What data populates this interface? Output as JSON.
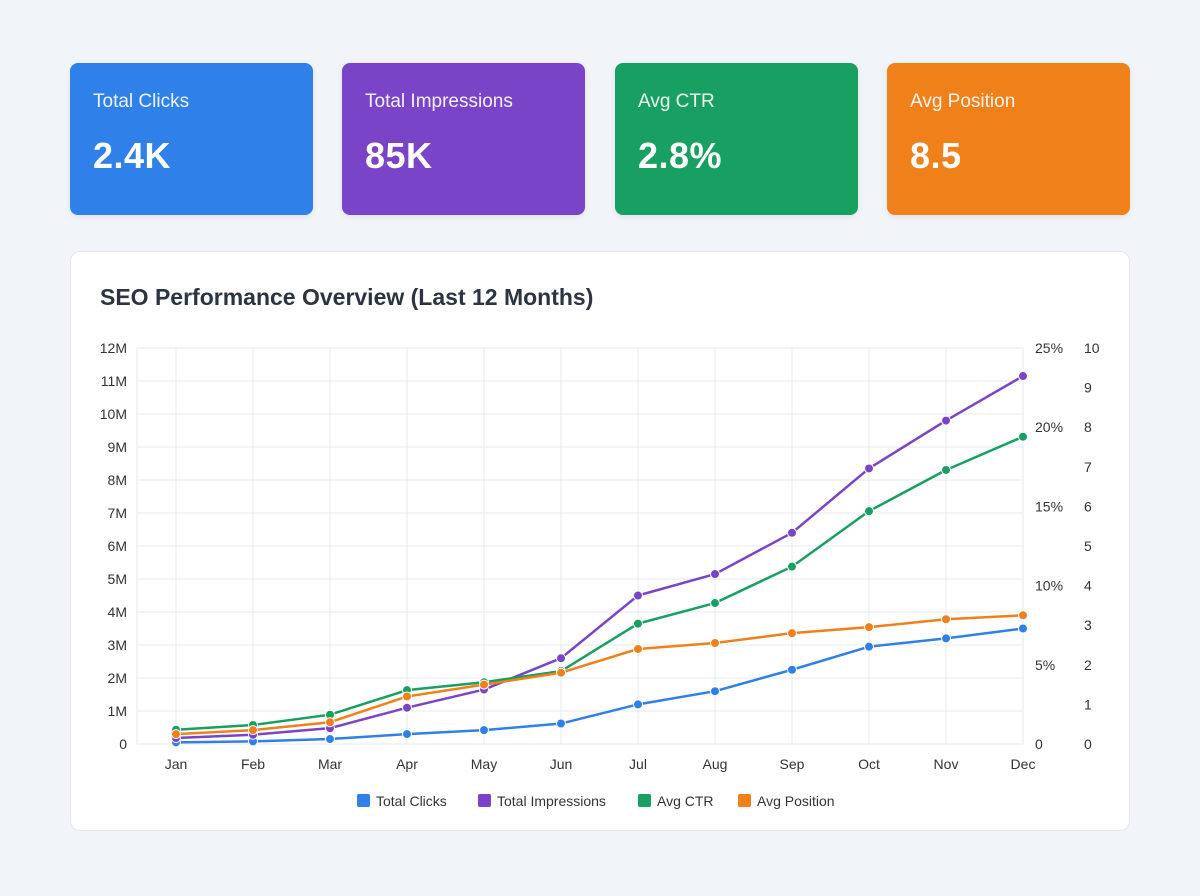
{
  "kpis": [
    {
      "label": "Total Clicks",
      "value": "2.4K",
      "color": "#2f80e8"
    },
    {
      "label": "Total Impressions",
      "value": "85K",
      "color": "#7a44c8"
    },
    {
      "label": "Avg CTR",
      "value": "2.8%",
      "color": "#17a061"
    },
    {
      "label": "Avg Position",
      "value": "8.5",
      "color": "#f08019"
    }
  ],
  "chart_data": {
    "type": "line",
    "title": "SEO Performance Overview (Last 12 Months)",
    "categories": [
      "Jan",
      "Feb",
      "Mar",
      "Apr",
      "May",
      "Jun",
      "Jul",
      "Aug",
      "Sep",
      "Oct",
      "Nov",
      "Dec"
    ],
    "grid": true,
    "legend_position": "bottom",
    "axes": {
      "y_left": {
        "ticks": [
          "0",
          "1M",
          "2M",
          "3M",
          "4M",
          "5M",
          "6M",
          "7M",
          "8M",
          "9M",
          "10M",
          "11M",
          "12M"
        ],
        "range": [
          0,
          12000000
        ]
      },
      "y_pct": {
        "ticks": [
          "0",
          "5%",
          "10%",
          "15%",
          "20%",
          "25%"
        ],
        "range": [
          0,
          25
        ]
      },
      "y_right": {
        "ticks": [
          "0",
          "1",
          "2",
          "3",
          "4",
          "5",
          "6",
          "7",
          "8",
          "9",
          "10"
        ],
        "range": [
          0,
          10
        ]
      }
    },
    "series": [
      {
        "name": "Total Clicks",
        "axis": "y_left",
        "color": "#2f80e8",
        "values": [
          0.05,
          0.08,
          0.15,
          0.3,
          0.42,
          0.62,
          1.2,
          1.6,
          2.25,
          2.95,
          3.2,
          3.5
        ]
      },
      {
        "name": "Total Impressions",
        "axis": "y_left",
        "color": "#7a44c8",
        "values": [
          0.18,
          0.28,
          0.48,
          1.1,
          1.65,
          2.6,
          4.5,
          5.15,
          6.4,
          8.35,
          9.8,
          11.15
        ]
      },
      {
        "name": "Avg CTR",
        "axis": "y_pct",
        "color": "#17a061",
        "values": [
          0.9,
          1.2,
          1.85,
          3.4,
          3.9,
          4.6,
          7.6,
          8.9,
          11.2,
          14.7,
          17.3,
          19.4
        ]
      },
      {
        "name": "Avg Position",
        "axis": "y_right",
        "color": "#f08019",
        "values": [
          0.25,
          0.35,
          0.55,
          1.2,
          1.5,
          1.8,
          2.4,
          2.55,
          2.8,
          2.95,
          3.15,
          3.25
        ]
      }
    ]
  }
}
